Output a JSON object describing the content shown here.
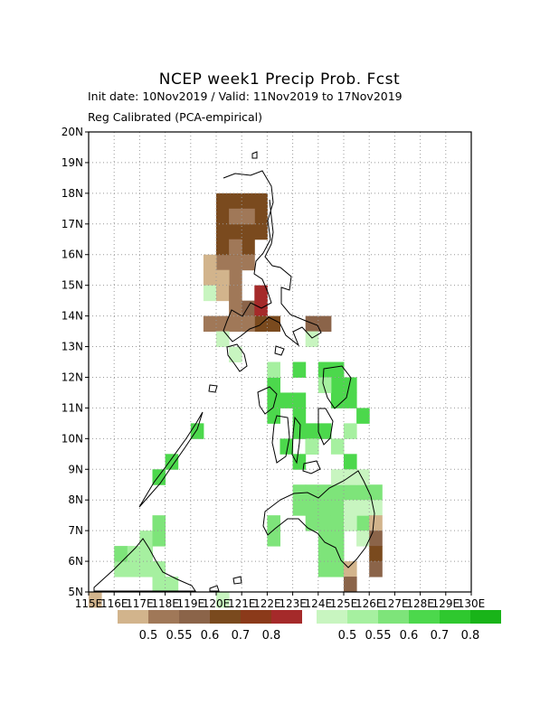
{
  "title": "NCEP week1 Precip Prob. Fcst",
  "init_line": "Init date: 10Nov2019 / Valid: 11Nov2019 to 17Nov2019",
  "method_line": "Reg Calibrated (PCA-empirical)",
  "lat_labels": [
    "20N",
    "19N",
    "18N",
    "17N",
    "16N",
    "15N",
    "14N",
    "13N",
    "12N",
    "11N",
    "10N",
    "9N",
    "8N",
    "7N",
    "6N",
    "5N"
  ],
  "lon_labels": [
    "115E",
    "116E",
    "117E",
    "118E",
    "119E",
    "120E",
    "121E",
    "122E",
    "123E",
    "124E",
    "125E",
    "126E",
    "127E",
    "128E",
    "129E",
    "130E"
  ],
  "legend_dry": {
    "colors": [
      "#d2b48c",
      "#a07858",
      "#8b6449",
      "#7a4a1e",
      "#8b3a1a",
      "#a52a2a"
    ],
    "labels": [
      "0.5",
      "0.55",
      "0.6",
      "0.7",
      "0.8"
    ]
  },
  "legend_wet": {
    "colors": [
      "#c8f5c0",
      "#a6f0a0",
      "#7ee47a",
      "#4cd84c",
      "#2fc82f",
      "#19b419"
    ],
    "labels": [
      "0.5",
      "0.55",
      "0.6",
      "0.7",
      "0.8"
    ]
  }
}
